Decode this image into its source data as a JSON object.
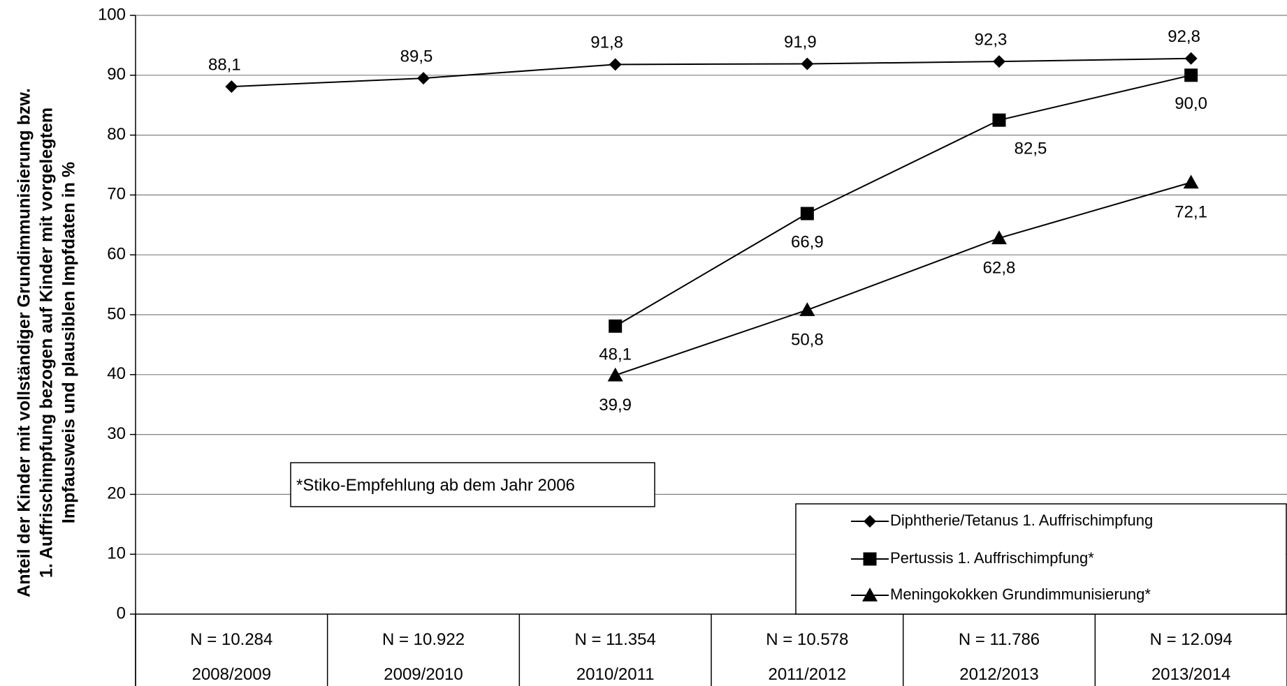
{
  "chart_data": {
    "type": "line",
    "ylabel_lines": [
      "Anteil der Kinder mit vollständiger Grundimmunisierung bzw.",
      "1. Auffrischimpfung bezogen auf Kinder mit vorgelegtem",
      "Impfausweis und plausiblen Impfdaten in %"
    ],
    "ylim": [
      0,
      100
    ],
    "yticks": [
      "0",
      "10",
      "20",
      "30",
      "40",
      "50",
      "60",
      "70",
      "80",
      "90",
      "100"
    ],
    "categories": [
      "2008/2009",
      "2009/2010",
      "2010/2011",
      "2011/2012",
      "2012/2013",
      "2013/2014"
    ],
    "sample_sizes": [
      "N = 10.284",
      "N = 10.922",
      "N = 11.354",
      "N = 10.578",
      "N = 11.786",
      "N = 12.094"
    ],
    "grid": true,
    "legend_position": "bottom-right",
    "series": [
      {
        "name": "Diphtherie/Tetanus 1. Auffrischimpfung",
        "marker": "diamond",
        "values": [
          88.1,
          89.5,
          91.8,
          91.9,
          92.3,
          92.8
        ],
        "labels": [
          "88,1",
          "89,5",
          "91,8",
          "91,9",
          "92,3",
          "92,8"
        ]
      },
      {
        "name": "Pertussis 1. Auffrischimpfung*",
        "marker": "square",
        "values": [
          null,
          null,
          48.1,
          66.9,
          82.5,
          90.0
        ],
        "labels": [
          null,
          null,
          "48,1",
          "66,9",
          "82,5",
          "90,0"
        ]
      },
      {
        "name": "Meningokokken Grundimmunisierung*",
        "marker": "triangle",
        "values": [
          null,
          null,
          39.9,
          50.8,
          62.8,
          72.1
        ],
        "labels": [
          null,
          null,
          "39,9",
          "50,8",
          "62,8",
          "72,1"
        ]
      }
    ],
    "annotation": "*Stiko-Empfehlung ab dem Jahr 2006"
  }
}
